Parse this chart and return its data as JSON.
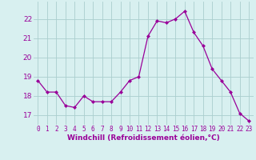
{
  "x": [
    0,
    1,
    2,
    3,
    4,
    5,
    6,
    7,
    8,
    9,
    10,
    11,
    12,
    13,
    14,
    15,
    16,
    17,
    18,
    19,
    20,
    21,
    22,
    23
  ],
  "y": [
    18.8,
    18.2,
    18.2,
    17.5,
    17.4,
    18.0,
    17.7,
    17.7,
    17.7,
    18.2,
    18.8,
    19.0,
    21.1,
    21.9,
    21.8,
    22.0,
    22.4,
    21.3,
    20.6,
    19.4,
    18.8,
    18.2,
    17.1,
    16.7
  ],
  "line_color": "#990099",
  "marker": "D",
  "marker_size": 2.0,
  "bg_color": "#d8f0f0",
  "grid_color": "#aacece",
  "xlabel": "Windchill (Refroidissement éolien,°C)",
  "xlabel_color": "#990099",
  "tick_color": "#990099",
  "ylim": [
    16.5,
    22.9
  ],
  "xlim": [
    -0.5,
    23.5
  ],
  "yticks": [
    17,
    18,
    19,
    20,
    21,
    22
  ],
  "xticks": [
    0,
    1,
    2,
    3,
    4,
    5,
    6,
    7,
    8,
    9,
    10,
    11,
    12,
    13,
    14,
    15,
    16,
    17,
    18,
    19,
    20,
    21,
    22,
    23
  ],
  "tick_fontsize": 5.5,
  "ytick_fontsize": 6.5,
  "xlabel_fontsize": 6.5
}
